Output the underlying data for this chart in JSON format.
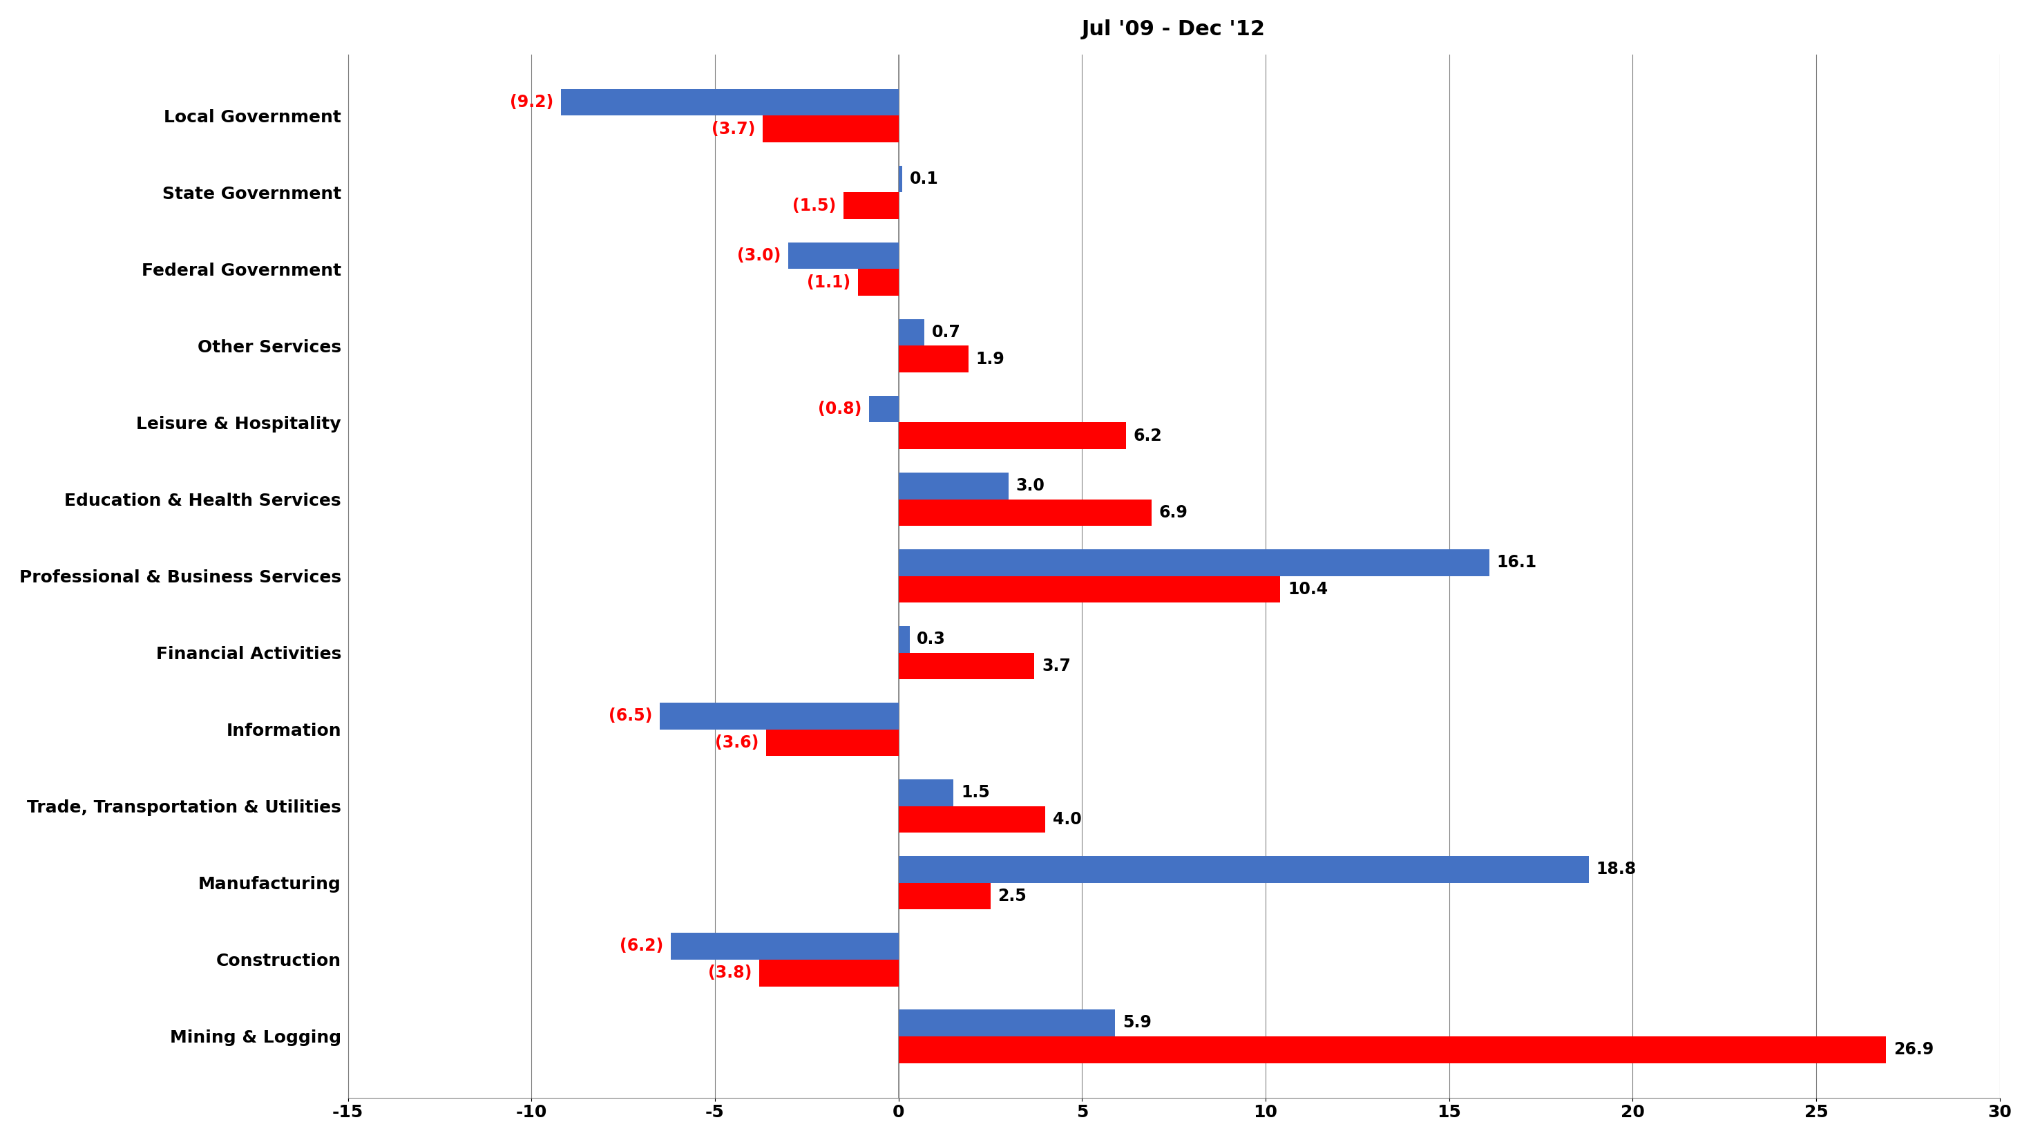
{
  "title": "Jul '09 - Dec '12",
  "categories": [
    "Local Government",
    "State Government",
    "Federal Government",
    "Other Services",
    "Leisure & Hospitality",
    "Education & Health Services",
    "Professional & Business Services",
    "Financial Activities",
    "Information",
    "Trade, Transportation & Utilities",
    "Manufacturing",
    "Construction",
    "Mining & Logging"
  ],
  "blue_values": [
    -9.2,
    0.1,
    -3.0,
    0.7,
    -0.8,
    3.0,
    16.1,
    0.3,
    -6.5,
    1.5,
    18.8,
    -6.2,
    5.9
  ],
  "red_values": [
    -3.7,
    -1.5,
    -1.1,
    1.9,
    6.2,
    6.9,
    10.4,
    3.7,
    -3.6,
    4.0,
    2.5,
    -3.8,
    26.9
  ],
  "blue_labels": [
    "(9.2)",
    "0.1",
    "(3.0)",
    "0.7",
    "(0.8)",
    "3.0",
    "16.1",
    "0.3",
    "(6.5)",
    "1.5",
    "18.8",
    "(6.2)",
    "5.9"
  ],
  "red_labels": [
    "(3.7)",
    "(1.5)",
    "(1.1)",
    "1.9",
    "6.2",
    "6.9",
    "10.4",
    "3.7",
    "(3.6)",
    "4.0",
    "2.5",
    "(3.8)",
    "26.9"
  ],
  "blue_label_colors": [
    "red",
    "black",
    "red",
    "black",
    "red",
    "black",
    "black",
    "black",
    "red",
    "black",
    "black",
    "red",
    "black"
  ],
  "red_label_colors": [
    "red",
    "red",
    "red",
    "black",
    "black",
    "black",
    "black",
    "black",
    "red",
    "black",
    "black",
    "red",
    "black"
  ],
  "blue_color": "#4472C4",
  "red_color": "#FF0000",
  "xlim": [
    -15,
    30
  ],
  "xticks": [
    -15,
    -10,
    -5,
    0,
    5,
    10,
    15,
    20,
    25,
    30
  ],
  "title_fontsize": 22,
  "label_fontsize": 18,
  "tick_fontsize": 18,
  "value_fontsize": 17,
  "bar_height": 0.35,
  "background_color": "#FFFFFF"
}
